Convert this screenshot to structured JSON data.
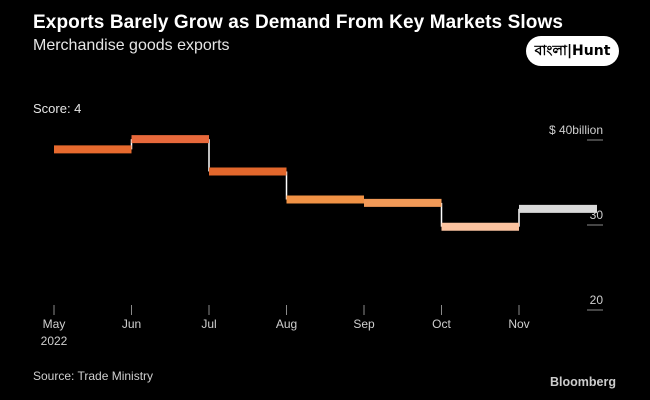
{
  "header": {
    "title": "Exports Barely Grow as Demand From Key Markets Slows",
    "subtitle": "Merchandise goods exports"
  },
  "logo": {
    "text": "বাংলা|Hunt"
  },
  "score_label": "Score: 4",
  "footer": {
    "source": "Source: Trade Ministry",
    "brand": "Bloomberg"
  },
  "chart_data": {
    "type": "line",
    "step": true,
    "title": "Exports Barely Grow as Demand From Key Markets Slows",
    "subtitle": "Merchandise goods exports",
    "xlabel": "",
    "ylabel": "",
    "categories": [
      "May",
      "Jun",
      "Jul",
      "Aug",
      "Sep",
      "Oct",
      "Nov"
    ],
    "x_year_label": "2022",
    "unit_prefix": "$",
    "unit_suffix": "billion",
    "ylim": [
      20,
      40
    ],
    "yticks": [
      {
        "value": 40,
        "label": "$ 40billion"
      },
      {
        "value": 30,
        "label": "30"
      },
      {
        "value": 20,
        "label": "20"
      }
    ],
    "series": [
      {
        "name": "Merchandise goods exports",
        "values": [
          38.9,
          40.1,
          36.3,
          33.0,
          32.6,
          29.8,
          31.9
        ]
      }
    ],
    "colors": [
      "#e76a2e",
      "#e8693b",
      "#e2672c",
      "#f19245",
      "#f29a58",
      "#fbc3a0",
      "#d9d9d9"
    ],
    "connector_color": "#ffffff",
    "axis_color": "#8a8a8a"
  }
}
